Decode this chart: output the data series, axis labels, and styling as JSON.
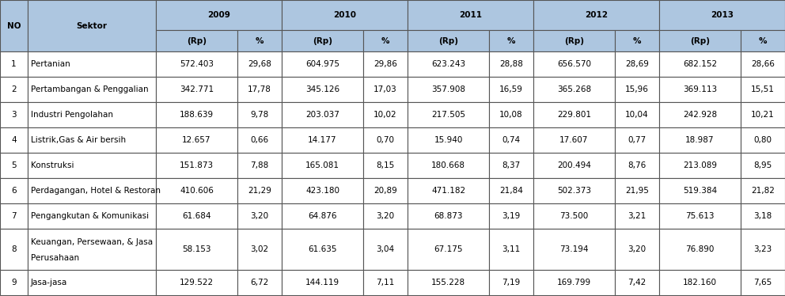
{
  "header_bg": "#adc6e0",
  "row_bg_white": "#ffffff",
  "border_color": "#555555",
  "years": [
    "2009",
    "2010",
    "2011",
    "2012",
    "2013"
  ],
  "rows": [
    {
      "no": "1",
      "sektor": "Pertanian",
      "data": [
        "572.403",
        "29,68",
        "604.975",
        "29,86",
        "623.243",
        "28,88",
        "656.570",
        "28,69",
        "682.152",
        "28,66"
      ]
    },
    {
      "no": "2",
      "sektor": "Pertambangan & Penggalian",
      "data": [
        "342.771",
        "17,78",
        "345.126",
        "17,03",
        "357.908",
        "16,59",
        "365.268",
        "15,96",
        "369.113",
        "15,51"
      ]
    },
    {
      "no": "3",
      "sektor": "Industri Pengolahan",
      "data": [
        "188.639",
        "9,78",
        "203.037",
        "10,02",
        "217.505",
        "10,08",
        "229.801",
        "10,04",
        "242.928",
        "10,21"
      ]
    },
    {
      "no": "4",
      "sektor": "Listrik,Gas & Air bersih",
      "data": [
        "12.657",
        "0,66",
        "14.177",
        "0,70",
        "15.940",
        "0,74",
        "17.607",
        "0,77",
        "18.987",
        "0,80"
      ]
    },
    {
      "no": "5",
      "sektor": "Konstruksi",
      "data": [
        "151.873",
        "7,88",
        "165.081",
        "8,15",
        "180.668",
        "8,37",
        "200.494",
        "8,76",
        "213.089",
        "8,95"
      ]
    },
    {
      "no": "6",
      "sektor": "Perdagangan, Hotel & Restoran",
      "data": [
        "410.606",
        "21,29",
        "423.180",
        "20,89",
        "471.182",
        "21,84",
        "502.373",
        "21,95",
        "519.384",
        "21,82"
      ]
    },
    {
      "no": "7",
      "sektor": "Pengangkutan & Komunikasi",
      "data": [
        "61.684",
        "3,20",
        "64.876",
        "3,20",
        "68.873",
        "3,19",
        "73.500",
        "3,21",
        "75.613",
        "3,18"
      ]
    },
    {
      "no": "8",
      "sektor_line1": "Keuangan, Persewaan, & Jasa",
      "sektor_line2": "Perusahaan",
      "data": [
        "58.153",
        "3,02",
        "61.635",
        "3,04",
        "67.175",
        "3,11",
        "73.194",
        "3,20",
        "76.890",
        "3,23"
      ]
    },
    {
      "no": "9",
      "sektor": "Jasa-jasa",
      "data": [
        "129.522",
        "6,72",
        "144.119",
        "7,11",
        "155.228",
        "7,19",
        "169.799",
        "7,42",
        "182.160",
        "7,65"
      ]
    }
  ],
  "figwidth": 9.92,
  "figheight": 3.74,
  "dpi": 100
}
